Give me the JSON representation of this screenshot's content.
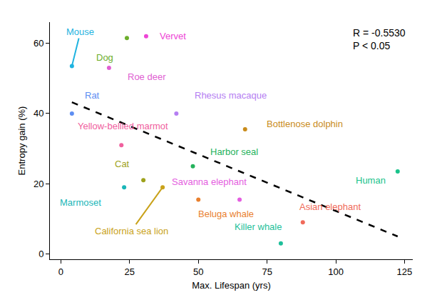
{
  "chart_data": {
    "type": "scatter",
    "x_label": "Max. Lifespan (yrs)",
    "y_label": "Entropy gain (%)",
    "annotations": [
      "R = -0.5530",
      "P < 0.05"
    ],
    "points": {
      "names": [
        "Mouse",
        "Dog",
        "Vervet",
        "Roe deer",
        "Rat",
        "Rhesus macaque",
        "Yellow-bellied marmot",
        "Bottlenose dolphin",
        "Harbor seal",
        "Cat",
        "Marmoset",
        "California sea lion",
        "Savanna elephant",
        "Beluga whale",
        "Asian elephant",
        "Killer whale",
        "Human"
      ],
      "x": [
        4,
        24,
        31,
        17.5,
        4,
        42,
        22,
        67,
        48,
        30,
        23,
        37,
        65,
        50,
        88,
        80,
        122.5
      ],
      "values": [
        53.5,
        61.5,
        62,
        53,
        40,
        40,
        31,
        35.5,
        25,
        21,
        19,
        19,
        15.5,
        15.5,
        9,
        3,
        23.5
      ],
      "colors": [
        "#1fb3e0",
        "#6cae2c",
        "#ee45d6",
        "#e05fd2",
        "#5d8ef2",
        "#b57ef2",
        "#f0609e",
        "#c98b1a",
        "#25b25c",
        "#9ea21c",
        "#1ab6b8",
        "#c9a21a",
        "#e45ee0",
        "#e9802e",
        "#f06a5a",
        "#1ebf9a",
        "#19c38b"
      ],
      "marker": "circle"
    },
    "trend_line": {
      "x": [
        4,
        122.5
      ],
      "values": [
        43.2,
        5.0
      ],
      "color": "#000000",
      "line_style": "dashed"
    },
    "xlim": [
      -4,
      128
    ],
    "xticks": [
      0,
      25,
      50,
      75,
      100,
      125
    ],
    "ylim": [
      -1.5,
      66
    ],
    "yticks": [
      0,
      20,
      40,
      60
    ],
    "grid": false
  }
}
